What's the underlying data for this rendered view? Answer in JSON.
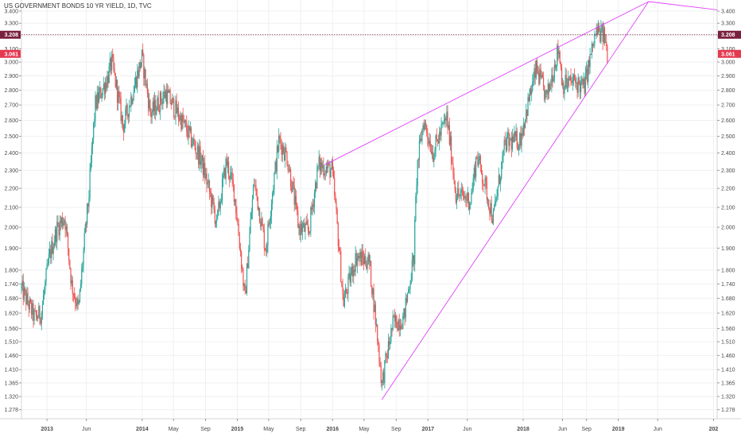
{
  "title": "US GOVERNMENT BONDS 10 YR YIELD, 1D, TVC",
  "colors": {
    "up": "#26a69a",
    "down": "#ef5350",
    "trendline": "#e040fb",
    "hline": "#7a1f3d",
    "tag_hline": "#7a1f3d",
    "tag_last": "#e53950",
    "grid": "#eef0f3",
    "axis": "#d6d6d6"
  },
  "chart_data": {
    "type": "candlestick",
    "title": "US GOVERNMENT BONDS 10 YR YIELD, 1D, TVC",
    "y_axis": {
      "scale": "log",
      "ylim": [
        1.25,
        3.48
      ],
      "ticks": [
        "3.400",
        "3.300",
        "3.200",
        "3.100",
        "3.000",
        "2.900",
        "2.800",
        "2.700",
        "2.600",
        "2.500",
        "2.400",
        "2.300",
        "2.200",
        "2.100",
        "2.000",
        "1.900",
        "1.800",
        "1.740",
        "1.680",
        "1.620",
        "1.560",
        "1.510",
        "1.460",
        "1.410",
        "1.365",
        "1.320",
        "1.278"
      ]
    },
    "x_axis": {
      "range": [
        "2012-09-25",
        "2020-01-15"
      ],
      "ticks": [
        {
          "label": "2013",
          "date": "2013-01-01",
          "bold": true
        },
        {
          "label": "Jun",
          "date": "2013-06-01"
        },
        {
          "label": "2014",
          "date": "2014-01-01",
          "bold": true
        },
        {
          "label": "May",
          "date": "2014-05-01"
        },
        {
          "label": "Sep",
          "date": "2014-09-01"
        },
        {
          "label": "2015",
          "date": "2015-01-01",
          "bold": true
        },
        {
          "label": "May",
          "date": "2015-05-01"
        },
        {
          "label": "Sep",
          "date": "2015-09-01"
        },
        {
          "label": "2016",
          "date": "2016-01-01",
          "bold": true
        },
        {
          "label": "May",
          "date": "2016-05-01"
        },
        {
          "label": "Sep",
          "date": "2016-09-01"
        },
        {
          "label": "2017",
          "date": "2017-01-01",
          "bold": true
        },
        {
          "label": "Jun",
          "date": "2017-06-01"
        },
        {
          "label": "2018",
          "date": "2018-01-01",
          "bold": true
        },
        {
          "label": "Jun",
          "date": "2018-06-01"
        },
        {
          "label": "Sep",
          "date": "2018-09-01"
        },
        {
          "label": "2019",
          "date": "2019-01-01",
          "bold": true
        },
        {
          "label": "Jun",
          "date": "2019-06-01"
        },
        {
          "label": "202",
          "date": "2020-01-01",
          "bold": true
        }
      ]
    },
    "price_path": [
      [
        "2012-09-25",
        1.72
      ],
      [
        "2012-10-20",
        1.66
      ],
      [
        "2012-11-15",
        1.6
      ],
      [
        "2012-12-10",
        1.62
      ],
      [
        "2013-01-10",
        1.86
      ],
      [
        "2013-02-10",
        2.0
      ],
      [
        "2013-03-10",
        2.05
      ],
      [
        "2013-04-05",
        1.74
      ],
      [
        "2013-05-02",
        1.63
      ],
      [
        "2013-06-10",
        2.15
      ],
      [
        "2013-07-05",
        2.7
      ],
      [
        "2013-08-20",
        2.88
      ],
      [
        "2013-09-06",
        3.0
      ],
      [
        "2013-10-20",
        2.56
      ],
      [
        "2013-11-20",
        2.75
      ],
      [
        "2013-12-31",
        3.03
      ],
      [
        "2014-02-02",
        2.64
      ],
      [
        "2014-04-01",
        2.78
      ],
      [
        "2014-06-01",
        2.6
      ],
      [
        "2014-08-15",
        2.36
      ],
      [
        "2014-10-14",
        2.02
      ],
      [
        "2014-11-20",
        2.35
      ],
      [
        "2014-12-20",
        2.18
      ],
      [
        "2015-01-30",
        1.67
      ],
      [
        "2015-03-06",
        2.24
      ],
      [
        "2015-04-20",
        1.89
      ],
      [
        "2015-06-10",
        2.48
      ],
      [
        "2015-07-10",
        2.38
      ],
      [
        "2015-08-24",
        2.0
      ],
      [
        "2015-10-02",
        1.98
      ],
      [
        "2015-11-08",
        2.33
      ],
      [
        "2015-12-30",
        2.3
      ],
      [
        "2016-02-11",
        1.66
      ],
      [
        "2016-04-01",
        1.86
      ],
      [
        "2016-05-20",
        1.84
      ],
      [
        "2016-07-08",
        1.36
      ],
      [
        "2016-08-20",
        1.58
      ],
      [
        "2016-09-30",
        1.6
      ],
      [
        "2016-11-08",
        1.86
      ],
      [
        "2016-11-20",
        2.31
      ],
      [
        "2016-12-15",
        2.6
      ],
      [
        "2017-01-20",
        2.4
      ],
      [
        "2017-03-14",
        2.62
      ],
      [
        "2017-04-18",
        2.17
      ],
      [
        "2017-06-14",
        2.14
      ],
      [
        "2017-07-07",
        2.39
      ],
      [
        "2017-09-08",
        2.04
      ],
      [
        "2017-10-25",
        2.46
      ],
      [
        "2017-12-20",
        2.48
      ],
      [
        "2018-02-21",
        2.95
      ],
      [
        "2018-04-01",
        2.74
      ],
      [
        "2018-05-17",
        3.11
      ],
      [
        "2018-06-01",
        2.84
      ],
      [
        "2018-07-15",
        2.86
      ],
      [
        "2018-08-23",
        2.82
      ],
      [
        "2018-10-08",
        3.23
      ],
      [
        "2018-11-08",
        3.2
      ],
      [
        "2018-11-20",
        3.06
      ]
    ],
    "annotations": {
      "horizontal_line": {
        "value": 3.208,
        "label": "3.208"
      },
      "last_price": {
        "value": 3.061,
        "label": "3.061"
      },
      "trendlines": [
        {
          "from": [
            "2016-07-08",
            1.31
          ],
          "to": [
            "2019-04-27",
            3.48
          ]
        },
        {
          "from": [
            "2015-12-01",
            2.33
          ],
          "to": [
            "2019-04-27",
            3.48
          ]
        },
        {
          "from": [
            "2019-04-27",
            3.48
          ],
          "to": [
            "2020-01-15",
            3.41
          ]
        }
      ]
    }
  }
}
